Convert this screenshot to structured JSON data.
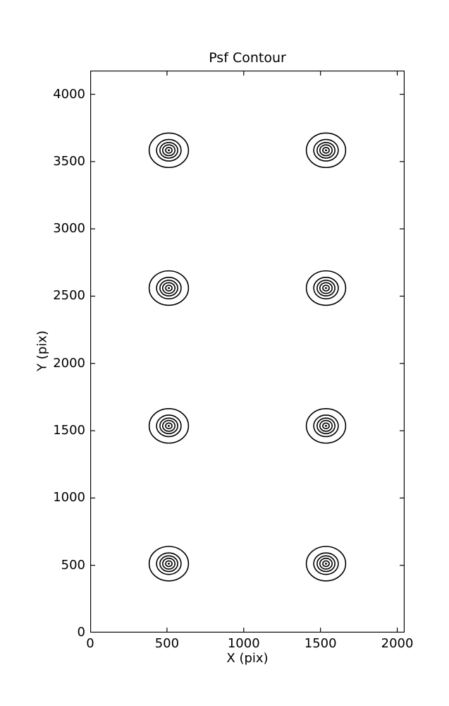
{
  "chart_data": {
    "type": "contour",
    "title": "Psf Contour",
    "xlabel": "X (pix)",
    "ylabel": "Y (pix)",
    "xlim": [
      0,
      2048
    ],
    "ylim": [
      0,
      4176
    ],
    "xticks": [
      0,
      500,
      1000,
      1500,
      2000
    ],
    "yticks": [
      0,
      500,
      1000,
      1500,
      2000,
      2500,
      3000,
      3500,
      4000
    ],
    "grid": false,
    "legend": null,
    "line_color": "#000000",
    "background_color": "#ffffff",
    "psf_centers": [
      {
        "x": 512,
        "y": 3584
      },
      {
        "x": 1536,
        "y": 3584
      },
      {
        "x": 512,
        "y": 2560
      },
      {
        "x": 1536,
        "y": 2560
      },
      {
        "x": 512,
        "y": 1536
      },
      {
        "x": 1536,
        "y": 1536
      },
      {
        "x": 512,
        "y": 512
      },
      {
        "x": 1536,
        "y": 512
      }
    ],
    "contour_ring_radii_pix": [
      128,
      80,
      58,
      40,
      21
    ],
    "center_dot_radius_pix": 7
  }
}
